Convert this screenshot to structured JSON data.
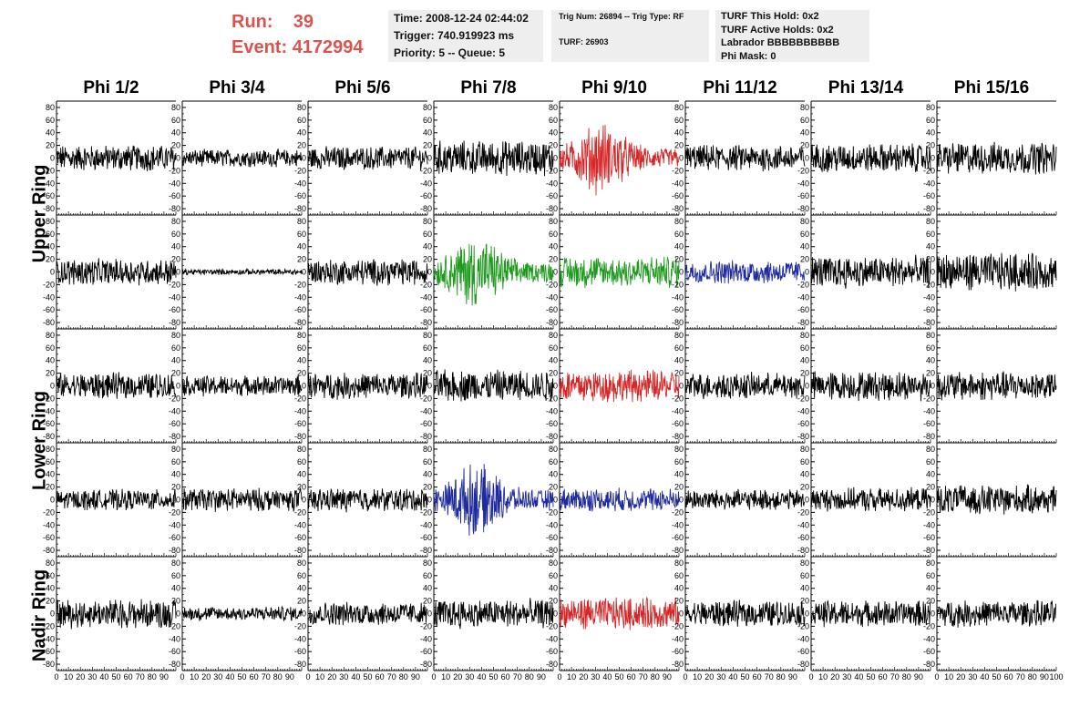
{
  "run": {
    "run_label": "Run:",
    "run_value": "39",
    "event_label": "Event:",
    "event_value": "4172994"
  },
  "info_box_1": {
    "time": "Time: 2008-12-24 02:44:02",
    "trigger": "Trigger: 740.919923 ms",
    "priority": "Priority: 5 -- Queue: 5"
  },
  "info_box_2": {
    "trig": "Trig Num: 26894 -- Trig Type: RF",
    "turf": "TURF: 26903"
  },
  "info_box_3": {
    "this_hold": "TURF This Hold: 0x2",
    "active_holds": "TURF Active Holds: 0x2",
    "labrador": "Labrador BBBBBBBBBB",
    "phi_mask": "Phi Mask: 0"
  },
  "phi_labels": [
    "Phi 1/2",
    "Phi 3/4",
    "Phi 5/6",
    "Phi 7/8",
    "Phi 9/10",
    "Phi 11/12",
    "Phi 13/14",
    "Phi 15/16"
  ],
  "ring_labels": {
    "upper": "Upper Ring",
    "lower": "Lower Ring",
    "nadir": "Nadir Ring"
  },
  "colors": {
    "run_text": "#d9534f",
    "trace_default": "#000000",
    "trace_red": "#d62728",
    "trace_green": "#1f9a1f",
    "trace_blue": "#1f2a9e",
    "info_bg": "#eeeeee"
  },
  "chart_data": {
    "type": "line",
    "grid": "5 rows x 8 columns of waveform panels",
    "xlim": [
      0,
      100
    ],
    "ylim": [
      -90,
      90
    ],
    "ytick_labels": [
      "-80",
      "-60",
      "-40",
      "-20",
      "0",
      "20",
      "40",
      "60",
      "80"
    ],
    "xtick_labels": [
      "0",
      "10",
      "20",
      "30",
      "40",
      "50",
      "60",
      "70",
      "80",
      "90",
      "100"
    ],
    "trace_amplitude": [
      [
        18,
        12,
        16,
        24,
        40,
        18,
        20,
        22
      ],
      [
        18,
        4,
        18,
        40,
        22,
        16,
        22,
        26
      ],
      [
        18,
        14,
        18,
        22,
        22,
        18,
        20,
        20
      ],
      [
        14,
        16,
        16,
        40,
        16,
        14,
        16,
        20
      ],
      [
        20,
        10,
        16,
        20,
        22,
        18,
        18,
        18
      ]
    ],
    "trace_envelope": [
      [
        0,
        0,
        0,
        0,
        1,
        0,
        0,
        0
      ],
      [
        0,
        0,
        0,
        1,
        0,
        0,
        0,
        0
      ],
      [
        0,
        0,
        0,
        0,
        0,
        0,
        0,
        0
      ],
      [
        0,
        0,
        0,
        1,
        0,
        0,
        0,
        0
      ],
      [
        0,
        0,
        0,
        0,
        0,
        0,
        0,
        0
      ]
    ],
    "trace_color": [
      [
        "black",
        "black",
        "black",
        "black",
        "red",
        "black",
        "black",
        "black"
      ],
      [
        "black",
        "black",
        "black",
        "green",
        "green",
        "blue",
        "black",
        "black"
      ],
      [
        "black",
        "black",
        "black",
        "black",
        "red",
        "black",
        "black",
        "black"
      ],
      [
        "black",
        "black",
        "black",
        "blue",
        "blue",
        "black",
        "black",
        "black"
      ],
      [
        "black",
        "black",
        "black",
        "black",
        "red",
        "black",
        "black",
        "black"
      ]
    ]
  }
}
